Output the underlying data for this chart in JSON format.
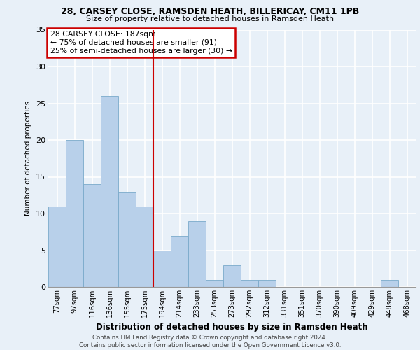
{
  "title1": "28, CARSEY CLOSE, RAMSDEN HEATH, BILLERICAY, CM11 1PB",
  "title2": "Size of property relative to detached houses in Ramsden Heath",
  "xlabel": "Distribution of detached houses by size in Ramsden Heath",
  "ylabel": "Number of detached properties",
  "categories": [
    "77sqm",
    "97sqm",
    "116sqm",
    "136sqm",
    "155sqm",
    "175sqm",
    "194sqm",
    "214sqm",
    "233sqm",
    "253sqm",
    "273sqm",
    "292sqm",
    "312sqm",
    "331sqm",
    "351sqm",
    "370sqm",
    "390sqm",
    "409sqm",
    "429sqm",
    "448sqm",
    "468sqm"
  ],
  "values": [
    11,
    20,
    14,
    26,
    13,
    11,
    5,
    7,
    9,
    1,
    3,
    1,
    1,
    0,
    0,
    0,
    0,
    0,
    0,
    1,
    0
  ],
  "bar_color": "#b8d0ea",
  "bar_edge_color": "#7aaaca",
  "vline_x": 6.0,
  "annotation_text": "28 CARSEY CLOSE: 187sqm\n← 75% of detached houses are smaller (91)\n25% of semi-detached houses are larger (30) →",
  "annotation_box_color": "#ffffff",
  "annotation_box_edge": "#cc0000",
  "vline_color": "#cc0000",
  "ylim": [
    0,
    35
  ],
  "yticks": [
    0,
    5,
    10,
    15,
    20,
    25,
    30,
    35
  ],
  "footer": "Contains HM Land Registry data © Crown copyright and database right 2024.\nContains public sector information licensed under the Open Government Licence v3.0.",
  "bg_color": "#e8f0f8",
  "grid_color": "#ffffff"
}
